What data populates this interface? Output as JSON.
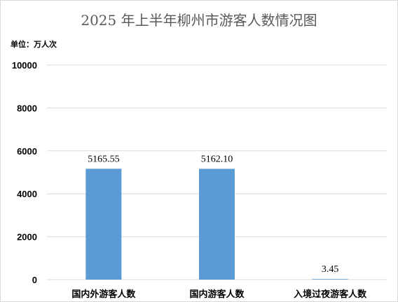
{
  "chart_data": {
    "type": "bar",
    "title": "2025 年上半年柳州市游客人数情况图",
    "unit_label": "单位：万人次",
    "categories": [
      "国内外游客人数",
      "国内游客人数",
      "入境过夜游客人数"
    ],
    "values": [
      5165.55,
      5162.1,
      3.45
    ],
    "data_labels": [
      "5165.55",
      "5162.10",
      "3.45"
    ],
    "ylim": [
      0,
      10000
    ],
    "yticks": [
      0,
      2000,
      4000,
      6000,
      8000,
      10000
    ],
    "grid": true,
    "legend": "none",
    "colors": {
      "bar": "#5b9bd5",
      "grid": "#d9d9d9"
    }
  }
}
